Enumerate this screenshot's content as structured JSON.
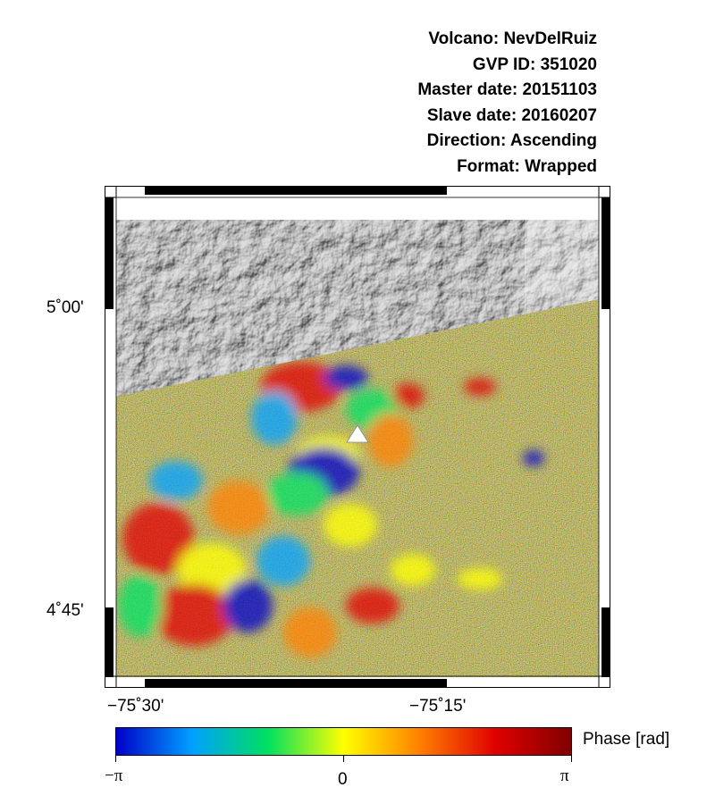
{
  "header": {
    "volcano": "Volcano: NevDelRuiz",
    "gvp_id": "GVP ID: 351020",
    "master_date": "Master date: 20151103",
    "slave_date": "Slave date: 20160207",
    "direction": "Direction: Ascending",
    "format": "Format: Wrapped"
  },
  "map": {
    "latitude_labels": [
      "5˚00'",
      "4˚45'"
    ],
    "longitude_labels": [
      "−75˚30'",
      "−75˚15'"
    ],
    "volcano_marker": "white-triangle-icon",
    "hillshade_color": "#8a8a8a",
    "noise_color": "#a89a3c"
  },
  "colorbar": {
    "title": "Phase [rad]",
    "min_label": "−π",
    "mid_label": "0",
    "max_label": "π",
    "colors": [
      "#0000c8",
      "#00a0ff",
      "#00e060",
      "#ffff00",
      "#ff8000",
      "#e00000",
      "#800000"
    ]
  }
}
